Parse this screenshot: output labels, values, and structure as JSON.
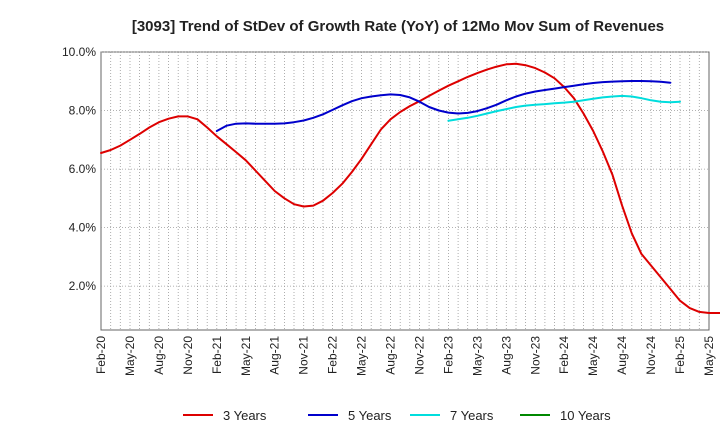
{
  "chart_data": {
    "type": "line",
    "title": "[3093]  Trend of StDev of Growth Rate (YoY) of 12Mo Mov Sum of Revenues",
    "xlabel": "",
    "ylabel": "",
    "ylim": [
      0.5,
      10.0
    ],
    "yticks": [
      2.0,
      4.0,
      6.0,
      8.0,
      10.0
    ],
    "ytick_labels": [
      "2.0%",
      "4.0%",
      "6.0%",
      "8.0%",
      "10.0%"
    ],
    "x_start": "2020-02",
    "x_end": "2025-05",
    "x_tick_labels": [
      "Feb-20",
      "May-20",
      "Aug-20",
      "Nov-20",
      "Feb-21",
      "May-21",
      "Aug-21",
      "Nov-21",
      "Feb-22",
      "May-22",
      "Aug-22",
      "Nov-22",
      "Feb-23",
      "May-23",
      "Aug-23",
      "Nov-23",
      "Feb-24",
      "May-24",
      "Aug-24",
      "Nov-24",
      "Feb-25",
      "May-25"
    ],
    "grid": true,
    "legend_position": "bottom",
    "series": [
      {
        "name": "3 Years",
        "color": "#dd0000",
        "start": "2020-02",
        "values": [
          6.55,
          6.65,
          6.8,
          7.0,
          7.2,
          7.42,
          7.6,
          7.72,
          7.8,
          7.8,
          7.7,
          7.42,
          7.12,
          6.85,
          6.58,
          6.3,
          5.95,
          5.6,
          5.25,
          5.0,
          4.8,
          4.72,
          4.75,
          4.92,
          5.18,
          5.5,
          5.9,
          6.35,
          6.85,
          7.35,
          7.7,
          7.95,
          8.15,
          8.32,
          8.5,
          8.68,
          8.85,
          9.0,
          9.15,
          9.28,
          9.4,
          9.5,
          9.58,
          9.6,
          9.55,
          9.45,
          9.3,
          9.1,
          8.8,
          8.42,
          7.9,
          7.3,
          6.6,
          5.8,
          4.75,
          3.8,
          3.1,
          2.7,
          2.3,
          1.9,
          1.5,
          1.25,
          1.12,
          1.08,
          1.08,
          1.08,
          0.98
        ]
      },
      {
        "name": "5 Years",
        "color": "#0000cc",
        "start": "2021-02",
        "values": [
          7.3,
          7.48,
          7.55,
          7.56,
          7.55,
          7.55,
          7.55,
          7.56,
          7.6,
          7.66,
          7.75,
          7.87,
          8.02,
          8.18,
          8.32,
          8.42,
          8.48,
          8.52,
          8.55,
          8.53,
          8.45,
          8.3,
          8.12,
          8.0,
          7.93,
          7.9,
          7.92,
          7.98,
          8.08,
          8.2,
          8.35,
          8.48,
          8.58,
          8.65,
          8.7,
          8.75,
          8.8,
          8.85,
          8.9,
          8.94,
          8.97,
          8.99,
          9.0,
          9.01,
          9.01,
          9.0,
          8.98,
          8.95
        ]
      },
      {
        "name": "7 Years",
        "color": "#00dddd",
        "start": "2023-02",
        "values": [
          7.65,
          7.7,
          7.75,
          7.82,
          7.9,
          7.98,
          8.05,
          8.12,
          8.17,
          8.2,
          8.22,
          8.25,
          8.27,
          8.3,
          8.35,
          8.4,
          8.45,
          8.48,
          8.5,
          8.48,
          8.42,
          8.35,
          8.3,
          8.28,
          8.3
        ]
      },
      {
        "name": "10 Years",
        "color": "#008800",
        "start": "2025-02",
        "values": []
      }
    ]
  }
}
